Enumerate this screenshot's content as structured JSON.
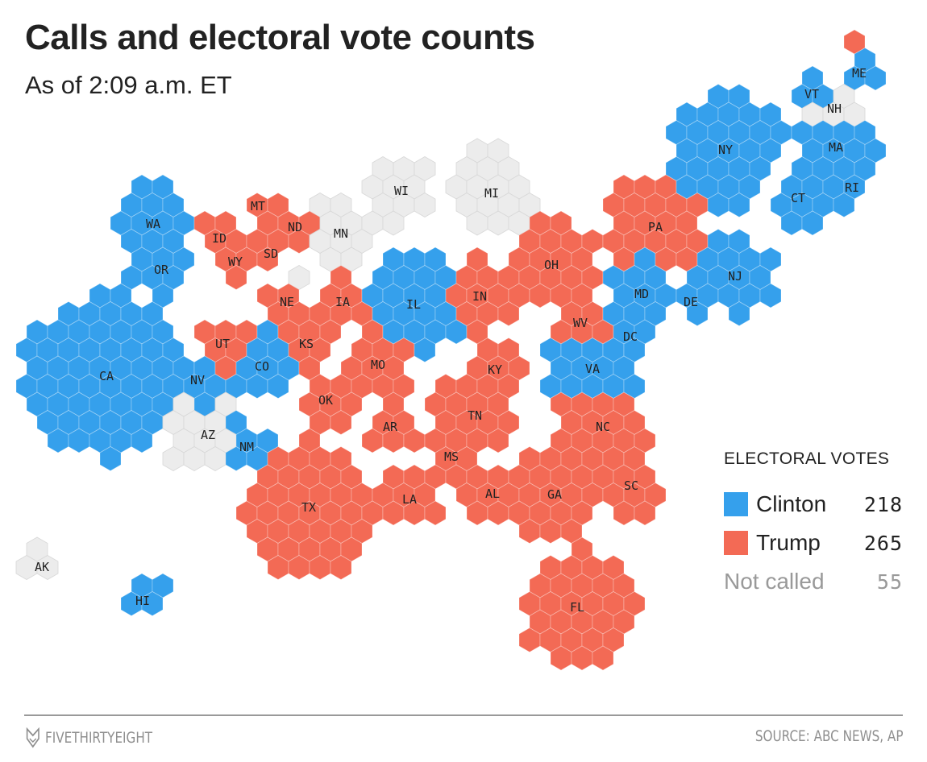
{
  "header": {
    "title": "Calls and electoral vote counts",
    "subtitle": "As of 2:09 a.m. ET"
  },
  "colors": {
    "clinton": "#35a0ec",
    "trump": "#f36a55",
    "not_called": "#ececec",
    "not_called_stroke": "#666666"
  },
  "legend": {
    "heading": "ELECTORAL VOTES",
    "items": [
      {
        "label": "Clinton",
        "value": "218",
        "key": "clinton"
      },
      {
        "label": "Trump",
        "value": "265",
        "key": "trump"
      },
      {
        "label": "Not called",
        "value": "55",
        "key": "not_called"
      }
    ]
  },
  "footer": {
    "brand": "FIVETHIRTYEIGHT",
    "source": "SOURCE: ABC NEWS, AP"
  },
  "chart_data": {
    "type": "hex-cartogram",
    "title": "Calls and electoral vote counts",
    "subtitle": "As of 2:09 a.m. ET",
    "unit": "one hexagon = one electoral vote",
    "states": [
      {
        "abbr": "WA",
        "ev": 12,
        "call": "clinton"
      },
      {
        "abbr": "OR",
        "ev": 7,
        "call": "clinton"
      },
      {
        "abbr": "CA",
        "ev": 55,
        "call": "clinton"
      },
      {
        "abbr": "NV",
        "ev": 6,
        "call": "clinton"
      },
      {
        "abbr": "ID",
        "ev": 4,
        "call": "trump"
      },
      {
        "abbr": "MT",
        "ev": 3,
        "call": "trump"
      },
      {
        "abbr": "WY",
        "ev": 3,
        "call": "trump"
      },
      {
        "abbr": "UT",
        "ev": 6,
        "call": "trump"
      },
      {
        "abbr": "CO",
        "ev": 9,
        "call": "clinton"
      },
      {
        "abbr": "AZ",
        "ev": 11,
        "call": "not_called"
      },
      {
        "abbr": "NM",
        "ev": 5,
        "call": "clinton"
      },
      {
        "abbr": "ND",
        "ev": 3,
        "call": "trump"
      },
      {
        "abbr": "SD",
        "ev": 3,
        "call": "trump"
      },
      {
        "abbr": "NE",
        "ev": 4,
        "call": "trump"
      },
      {
        "abbr": "",
        "ev": 1,
        "call": "not_called",
        "note": "NE-2"
      },
      {
        "abbr": "KS",
        "ev": 6,
        "call": "trump"
      },
      {
        "abbr": "OK",
        "ev": 7,
        "call": "trump"
      },
      {
        "abbr": "TX",
        "ev": 38,
        "call": "trump"
      },
      {
        "abbr": "MN",
        "ev": 10,
        "call": "not_called"
      },
      {
        "abbr": "IA",
        "ev": 6,
        "call": "trump"
      },
      {
        "abbr": "MO",
        "ev": 10,
        "call": "trump"
      },
      {
        "abbr": "AR",
        "ev": 6,
        "call": "trump"
      },
      {
        "abbr": "LA",
        "ev": 8,
        "call": "trump"
      },
      {
        "abbr": "WI",
        "ev": 10,
        "call": "not_called"
      },
      {
        "abbr": "IL",
        "ev": 20,
        "call": "clinton"
      },
      {
        "abbr": "MI",
        "ev": 16,
        "call": "not_called"
      },
      {
        "abbr": "IN",
        "ev": 11,
        "call": "trump"
      },
      {
        "abbr": "KY",
        "ev": 8,
        "call": "trump"
      },
      {
        "abbr": "TN",
        "ev": 11,
        "call": "trump"
      },
      {
        "abbr": "MS",
        "ev": 6,
        "call": "trump"
      },
      {
        "abbr": "AL",
        "ev": 9,
        "call": "trump"
      },
      {
        "abbr": "OH",
        "ev": 18,
        "call": "trump"
      },
      {
        "abbr": "WV",
        "ev": 5,
        "call": "trump"
      },
      {
        "abbr": "GA",
        "ev": 16,
        "call": "trump"
      },
      {
        "abbr": "FL",
        "ev": 29,
        "call": "trump"
      },
      {
        "abbr": "SC",
        "ev": 9,
        "call": "trump"
      },
      {
        "abbr": "NC",
        "ev": 15,
        "call": "trump"
      },
      {
        "abbr": "VA",
        "ev": 13,
        "call": "clinton"
      },
      {
        "abbr": "PA",
        "ev": 20,
        "call": "trump"
      },
      {
        "abbr": "NY",
        "ev": 29,
        "call": "clinton"
      },
      {
        "abbr": "VT",
        "ev": 3,
        "call": "clinton"
      },
      {
        "abbr": "NH",
        "ev": 4,
        "call": "not_called"
      },
      {
        "abbr": "ME",
        "ev": 3,
        "call": "clinton"
      },
      {
        "abbr": "",
        "ev": 1,
        "call": "trump",
        "note": "ME-2"
      },
      {
        "abbr": "MA",
        "ev": 11,
        "call": "clinton"
      },
      {
        "abbr": "CT",
        "ev": 7,
        "call": "clinton"
      },
      {
        "abbr": "RI",
        "ev": 4,
        "call": "clinton"
      },
      {
        "abbr": "NJ",
        "ev": 14,
        "call": "clinton"
      },
      {
        "abbr": "DE",
        "ev": 3,
        "call": "clinton"
      },
      {
        "abbr": "MD",
        "ev": 10,
        "call": "clinton"
      },
      {
        "abbr": "DC",
        "ev": 3,
        "call": "clinton"
      },
      {
        "abbr": "AK",
        "ev": 3,
        "call": "not_called"
      },
      {
        "abbr": "HI",
        "ev": 4,
        "call": "clinton"
      }
    ],
    "totals": {
      "clinton": 218,
      "trump": 265,
      "not_called": 55
    }
  }
}
